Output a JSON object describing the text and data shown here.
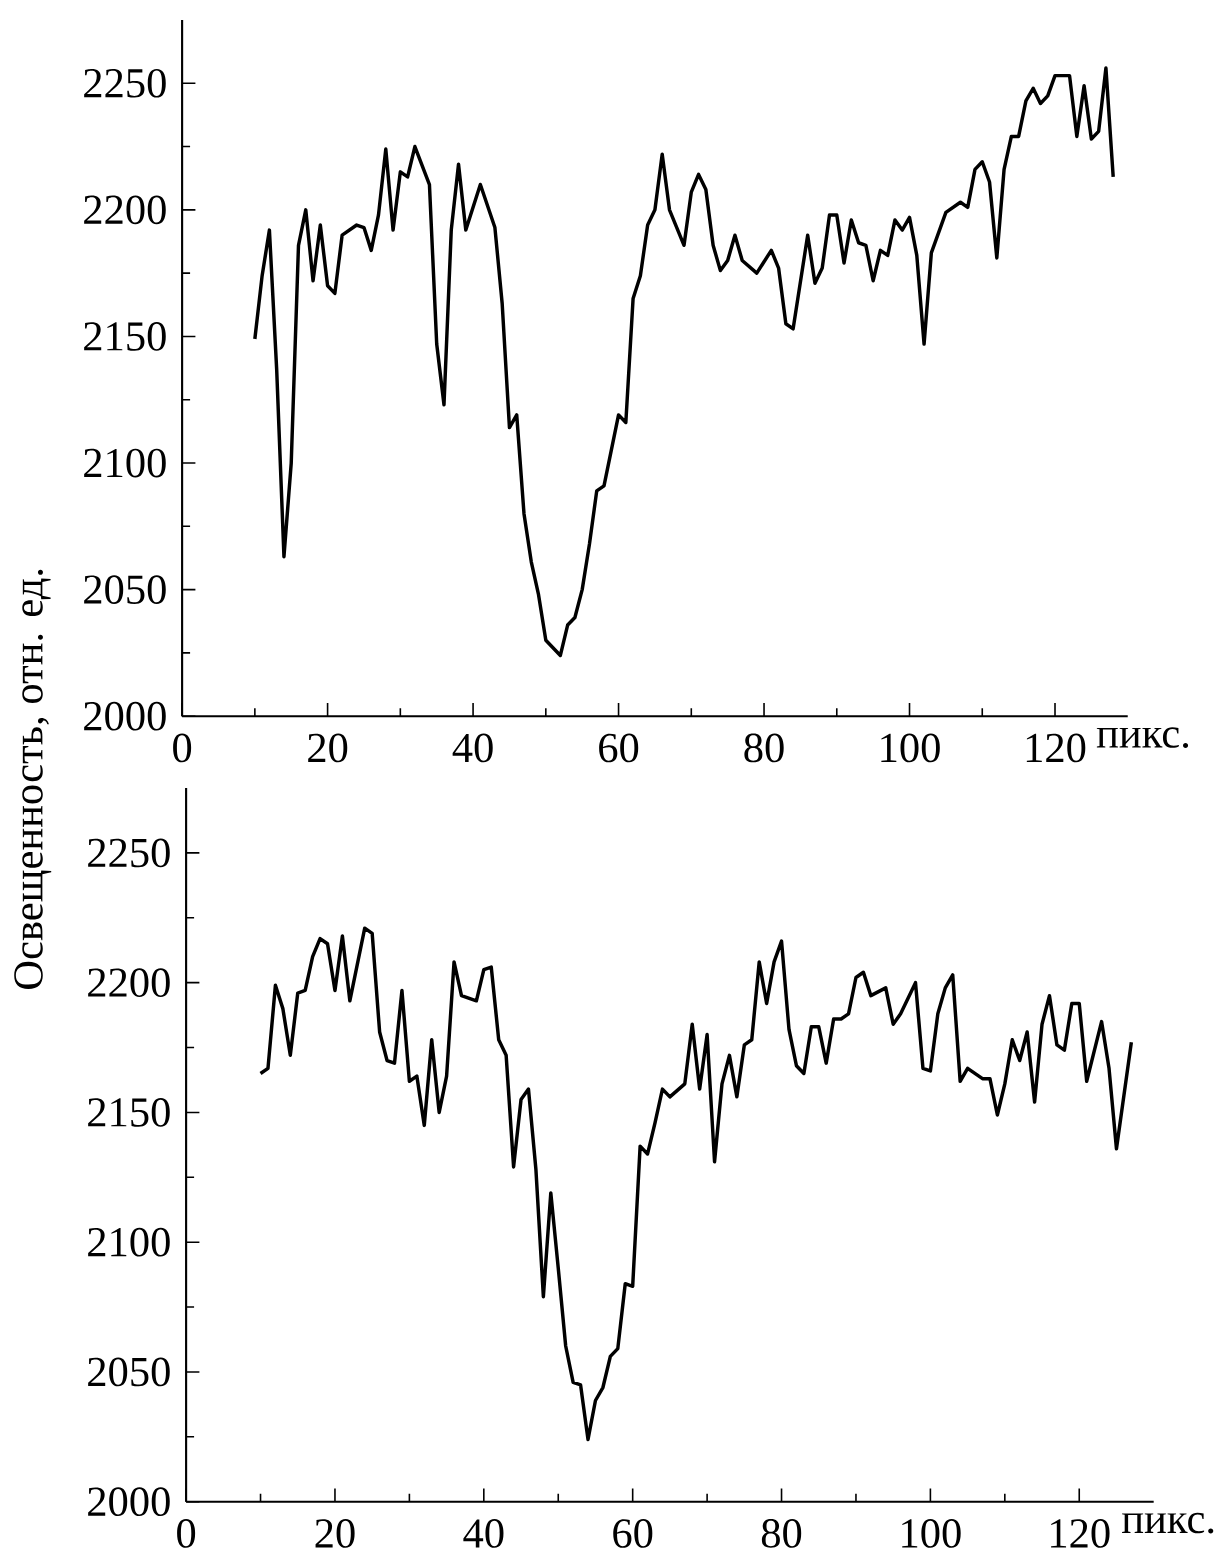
{
  "chart_data": [
    {
      "type": "line",
      "ylabel": "Освещенность, отн. ед.",
      "xlabel": "пикс.",
      "xlim": [
        0,
        130
      ],
      "ylim": [
        2000,
        2275
      ],
      "xticks": [
        0,
        20,
        40,
        60,
        80,
        100,
        120
      ],
      "yticks": [
        2000,
        2050,
        2100,
        2150,
        2200,
        2250
      ],
      "series": [
        {
          "color": "#000000",
          "x": [
            10,
            11,
            12,
            13,
            14,
            15,
            16,
            17,
            18,
            19,
            20,
            21,
            22,
            24,
            25,
            26,
            27,
            28,
            29,
            30,
            31,
            32,
            34,
            35,
            36,
            37,
            38,
            39,
            41,
            43,
            44,
            45,
            46,
            47,
            48,
            49,
            50,
            52,
            53,
            54,
            55,
            56,
            57,
            58,
            60,
            61,
            62,
            63,
            64,
            65,
            66,
            67,
            69,
            70,
            71,
            72,
            73,
            74,
            75,
            76,
            77,
            79,
            81,
            82,
            83,
            84,
            86,
            87,
            88,
            89,
            90,
            91,
            92,
            93,
            94,
            95,
            96,
            97,
            98,
            99,
            100,
            101,
            102,
            103,
            105,
            107,
            108,
            109,
            110,
            111,
            112,
            113,
            114,
            115,
            116,
            117,
            118,
            119,
            120,
            122,
            123,
            124,
            125,
            126,
            127,
            128
          ],
          "values": [
            2149,
            2174,
            2192,
            2137,
            2063,
            2100,
            2186,
            2200,
            2172,
            2194,
            2170,
            2167,
            2190,
            2194,
            2193,
            2184,
            2198,
            2224,
            2192,
            2215,
            2213,
            2225,
            2210,
            2147,
            2123,
            2192,
            2218,
            2192,
            2210,
            2193,
            2163,
            2114,
            2119,
            2080,
            2061,
            2048,
            2030,
            2024,
            2036,
            2039,
            2050,
            2068,
            2089,
            2091,
            2119,
            2116,
            2165,
            2174,
            2194,
            2200,
            2222,
            2200,
            2186,
            2207,
            2214,
            2208,
            2186,
            2176,
            2180,
            2190,
            2180,
            2175,
            2184,
            2177,
            2155,
            2153,
            2190,
            2171,
            2177,
            2198,
            2198,
            2179,
            2196,
            2187,
            2186,
            2172,
            2184,
            2182,
            2196,
            2192,
            2197,
            2182,
            2147,
            2183,
            2199,
            2203,
            2201,
            2216,
            2219,
            2211,
            2181,
            2216,
            2229,
            2229,
            2243,
            2248,
            2242,
            2245,
            2253,
            2253,
            2229,
            2249,
            2228,
            2231,
            2256,
            2213
          ]
        }
      ]
    },
    {
      "type": "line",
      "xlabel": "пикс.",
      "xlim": [
        0,
        130
      ],
      "ylim": [
        2000,
        2275
      ],
      "xticks": [
        0,
        20,
        40,
        60,
        80,
        100,
        120
      ],
      "yticks": [
        2000,
        2050,
        2100,
        2150,
        2200,
        2250
      ],
      "series": [
        {
          "color": "#000000",
          "x": [
            10,
            11,
            12,
            13,
            14,
            15,
            16,
            17,
            18,
            19,
            20,
            21,
            22,
            24,
            25,
            26,
            27,
            28,
            29,
            30,
            31,
            32,
            33,
            34,
            35,
            36,
            37,
            39,
            40,
            41,
            42,
            43,
            44,
            45,
            46,
            47,
            48,
            49,
            50,
            51,
            52,
            53,
            54,
            55,
            56,
            57,
            58,
            59,
            60,
            61,
            62,
            63,
            64,
            65,
            67,
            68,
            69,
            70,
            71,
            72,
            73,
            74,
            75,
            76,
            77,
            78,
            79,
            80,
            81,
            82,
            83,
            84,
            85,
            86,
            87,
            88,
            89,
            90,
            91,
            92,
            94,
            95,
            96,
            98,
            99,
            100,
            101,
            102,
            103,
            104,
            105,
            107,
            108,
            109,
            110,
            111,
            112,
            113,
            114,
            115,
            116,
            117,
            118,
            119,
            120,
            121,
            123,
            124,
            125,
            127
          ],
          "values": [
            2165,
            2167,
            2199,
            2190,
            2172,
            2196,
            2197,
            2210,
            2217,
            2215,
            2197,
            2218,
            2193,
            2221,
            2219,
            2181,
            2170,
            2169,
            2197,
            2162,
            2164,
            2145,
            2178,
            2150,
            2164,
            2208,
            2195,
            2193,
            2205,
            2206,
            2178,
            2172,
            2129,
            2155,
            2159,
            2128,
            2079,
            2119,
            2090,
            2060,
            2046,
            2045,
            2024,
            2039,
            2044,
            2056,
            2059,
            2084,
            2083,
            2137,
            2134,
            2146,
            2159,
            2156,
            2161,
            2184,
            2159,
            2180,
            2131,
            2161,
            2172,
            2156,
            2176,
            2178,
            2208,
            2192,
            2208,
            2216,
            2182,
            2168,
            2165,
            2183,
            2183,
            2169,
            2186,
            2186,
            2188,
            2202,
            2204,
            2195,
            2198,
            2184,
            2188,
            2200,
            2167,
            2166,
            2188,
            2198,
            2203,
            2162,
            2167,
            2163,
            2163,
            2149,
            2161,
            2178,
            2170,
            2181,
            2154,
            2184,
            2195,
            2176,
            2174,
            2192,
            2192,
            2162,
            2185,
            2167,
            2136,
            2177
          ]
        }
      ]
    }
  ]
}
